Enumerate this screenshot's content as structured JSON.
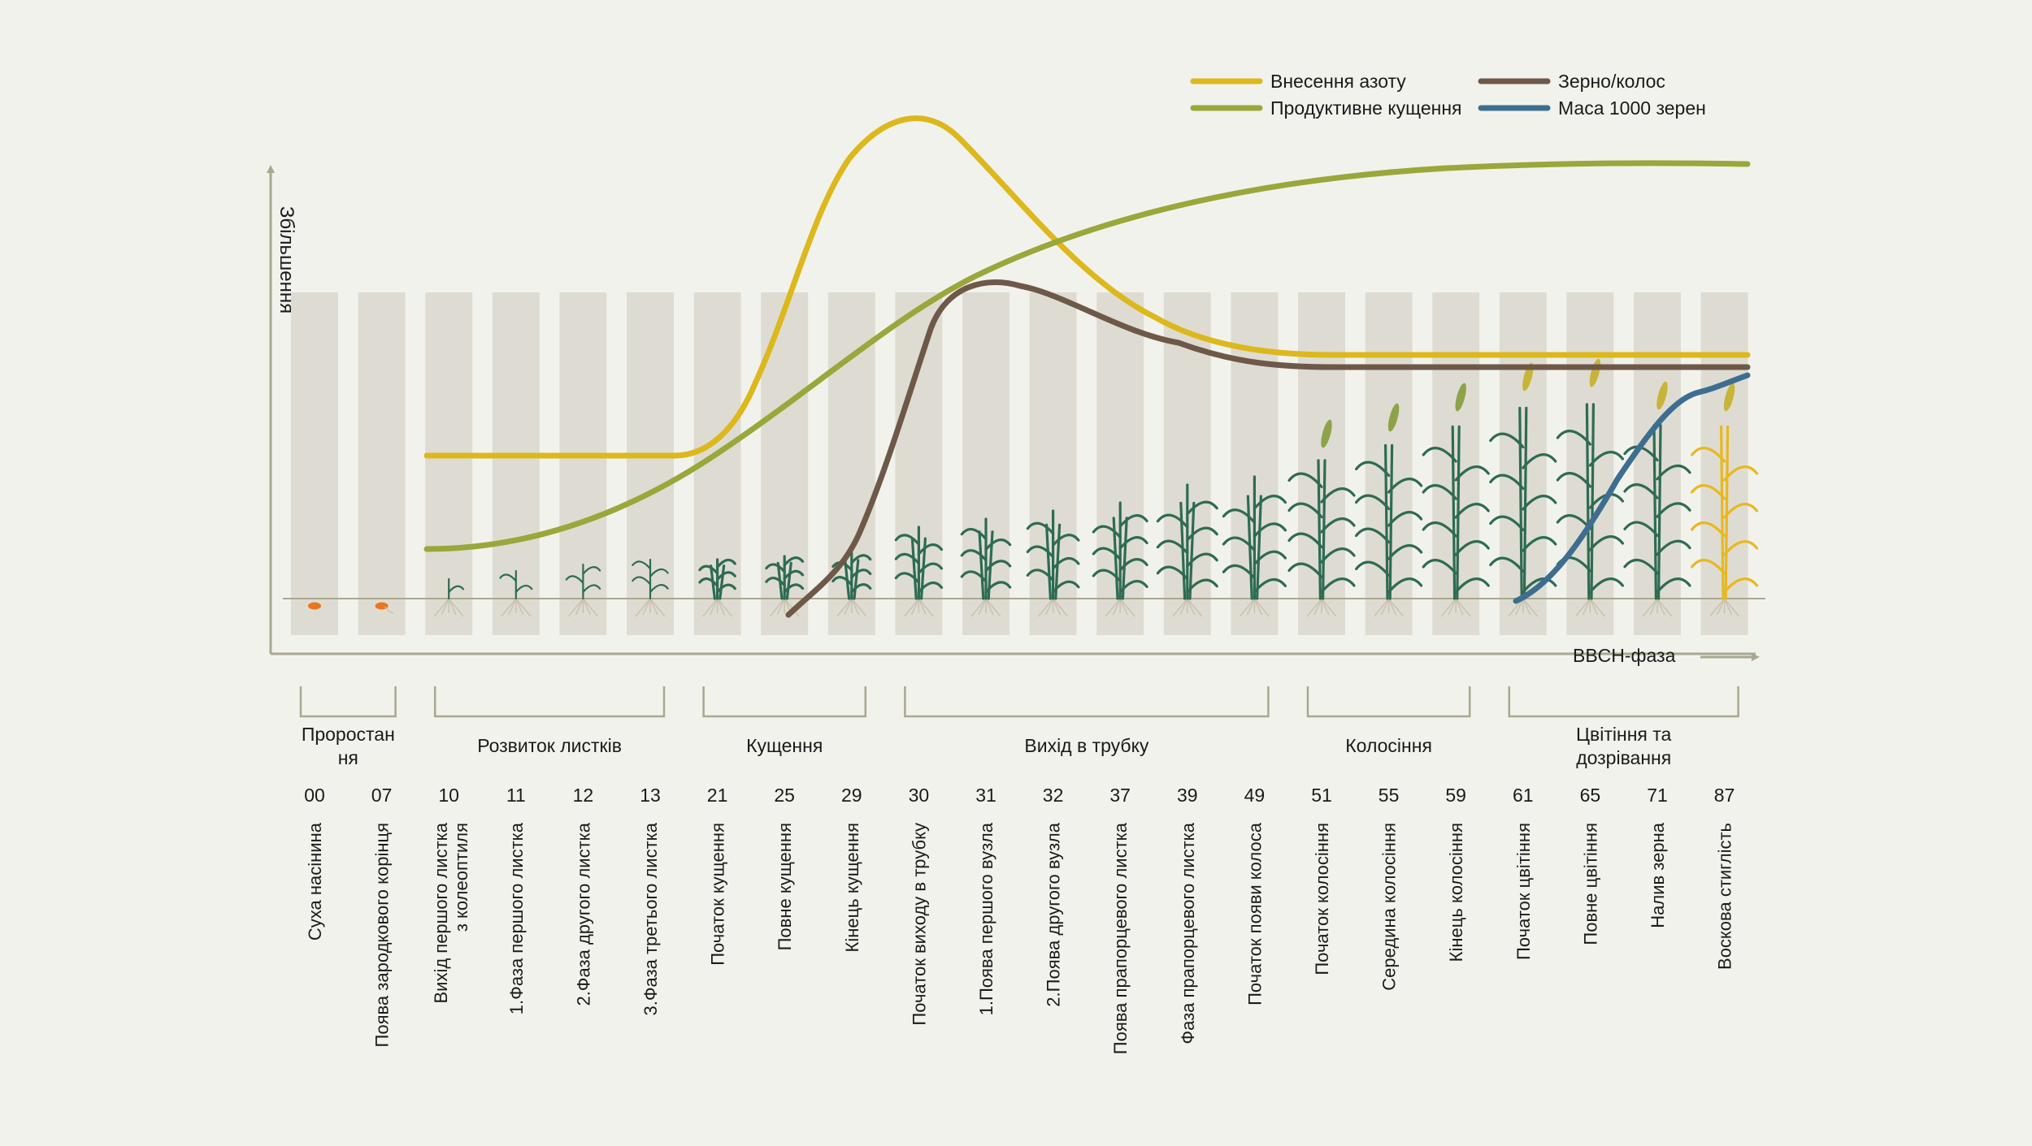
{
  "axis": {
    "y_label": "Збільшення",
    "x_label": "BBCH-фаза"
  },
  "legend": [
    {
      "label": "Внесення азоту",
      "color": "#dcb81c"
    },
    {
      "label": "Продуктивне кущення",
      "color": "#9aa73a"
    },
    {
      "label": "Зерно/колос",
      "color": "#6e5848"
    },
    {
      "label": "Маса 1000 зерен",
      "color": "#3d6e90"
    }
  ],
  "groups": [
    {
      "label": "Проростан ня",
      "from": 0,
      "to": 1
    },
    {
      "label": "Розвиток листків",
      "from": 2,
      "to": 5
    },
    {
      "label": "Кущення",
      "from": 6,
      "to": 8
    },
    {
      "label": "Вихід в трубку",
      "from": 9,
      "to": 14
    },
    {
      "label": "Колосіння",
      "from": 15,
      "to": 17
    },
    {
      "label": "Цвітіння та дозрівання",
      "from": 18,
      "to": 21
    }
  ],
  "stages": [
    {
      "code": "00",
      "name": "Суха насінина"
    },
    {
      "code": "07",
      "name": "Поява зародкового корінця"
    },
    {
      "code": "10",
      "name": "Вихід першого листка з колеоптиля"
    },
    {
      "code": "11",
      "name": "1.Фаза першого листка"
    },
    {
      "code": "12",
      "name": "2.Фаза другого листка"
    },
    {
      "code": "13",
      "name": "3.Фаза третього листка"
    },
    {
      "code": "21",
      "name": "Початок кущення"
    },
    {
      "code": "25",
      "name": "Повне кущення"
    },
    {
      "code": "29",
      "name": "Кінець кущення"
    },
    {
      "code": "30",
      "name": "Початок виходу в трубку"
    },
    {
      "code": "31",
      "name": "1.Поява першого вузла"
    },
    {
      "code": "32",
      "name": "2.Поява другого вузла"
    },
    {
      "code": "37",
      "name": "Поява прапорцевого листка"
    },
    {
      "code": "39",
      "name": "Фаза прапорцевого листка"
    },
    {
      "code": "49",
      "name": "Початок появи колоса"
    },
    {
      "code": "51",
      "name": "Початок колосіння"
    },
    {
      "code": "55",
      "name": "Середина колосіння"
    },
    {
      "code": "59",
      "name": "Кінець колосіння"
    },
    {
      "code": "61",
      "name": "Початок цвітіння"
    },
    {
      "code": "65",
      "name": "Повне цвітіння"
    },
    {
      "code": "71",
      "name": "Налив зерна"
    },
    {
      "code": "87",
      "name": "Воскова стиглість"
    }
  ],
  "colors": {
    "background": "#f2f2ed",
    "column": "#dedcd2",
    "axis": "#a9a88f",
    "plant": "#2e6b53",
    "seed": "#e8761e",
    "ripe_plant": "#e8b820"
  }
}
